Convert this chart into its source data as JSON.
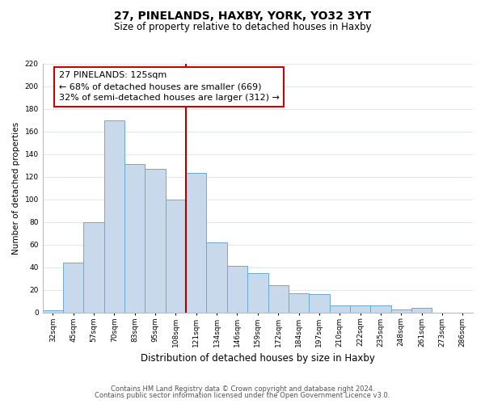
{
  "title": "27, PINELANDS, HAXBY, YORK, YO32 3YT",
  "subtitle": "Size of property relative to detached houses in Haxby",
  "xlabel": "Distribution of detached houses by size in Haxby",
  "ylabel": "Number of detached properties",
  "categories": [
    "32sqm",
    "45sqm",
    "57sqm",
    "70sqm",
    "83sqm",
    "95sqm",
    "108sqm",
    "121sqm",
    "134sqm",
    "146sqm",
    "159sqm",
    "172sqm",
    "184sqm",
    "197sqm",
    "210sqm",
    "222sqm",
    "235sqm",
    "248sqm",
    "261sqm",
    "273sqm",
    "286sqm"
  ],
  "values": [
    2,
    44,
    80,
    170,
    131,
    127,
    100,
    123,
    62,
    41,
    35,
    24,
    17,
    16,
    6,
    6,
    6,
    3,
    4,
    0,
    0
  ],
  "bar_color": "#c8d9ec",
  "bar_edge_color": "#6aaad4",
  "highlight_index": 7,
  "highlight_color": "#aa0000",
  "ylim": [
    0,
    220
  ],
  "yticks": [
    0,
    20,
    40,
    60,
    80,
    100,
    120,
    140,
    160,
    180,
    200,
    220
  ],
  "annotation_title": "27 PINELANDS: 125sqm",
  "annotation_line1": "← 68% of detached houses are smaller (669)",
  "annotation_line2": "32% of semi-detached houses are larger (312) →",
  "annotation_box_color": "#ffffff",
  "annotation_box_edge": "#cc0000",
  "grid_color": "#dce8f5",
  "footnote1": "Contains HM Land Registry data © Crown copyright and database right 2024.",
  "footnote2": "Contains public sector information licensed under the Open Government Licence v3.0.",
  "title_fontsize": 10,
  "subtitle_fontsize": 8.5,
  "xlabel_fontsize": 8.5,
  "ylabel_fontsize": 7.5,
  "tick_fontsize": 6.5,
  "annotation_fontsize": 8,
  "footnote_fontsize": 6
}
